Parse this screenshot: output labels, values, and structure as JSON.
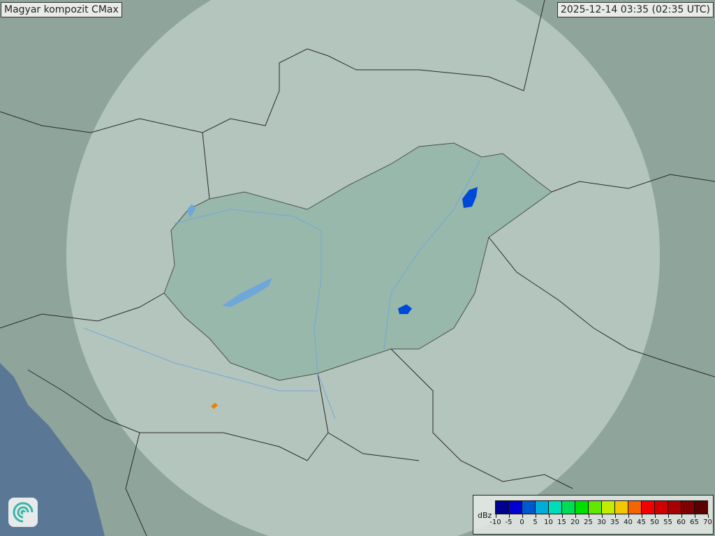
{
  "title": "Magyar kompozit  CMax",
  "timestamp": "2025-12-14 03:35 (02:35 UTC)",
  "legend": {
    "unit": "dBz",
    "labels": [
      "-10",
      "-5",
      "0",
      "5",
      "10",
      "15",
      "20",
      "25",
      "30",
      "35",
      "40",
      "45",
      "50",
      "55",
      "60",
      "65",
      "70"
    ],
    "colors": [
      "#000090",
      "#0000d0",
      "#0058d0",
      "#00acd8",
      "#00dcb8",
      "#00dc58",
      "#00e000",
      "#60e800",
      "#c4ec00",
      "#f4c800",
      "#f46400",
      "#f40000",
      "#d00000",
      "#a80000",
      "#800000",
      "#5a0000"
    ]
  },
  "colors": {
    "land": "#8fa49a",
    "coverage": "#c8d6cf",
    "hungary": "#8fb4a6",
    "sea": "#5a7896",
    "border": "#2a2a2a",
    "river": "#6fa8d8"
  },
  "logo_icon": "swirl-logo-icon"
}
